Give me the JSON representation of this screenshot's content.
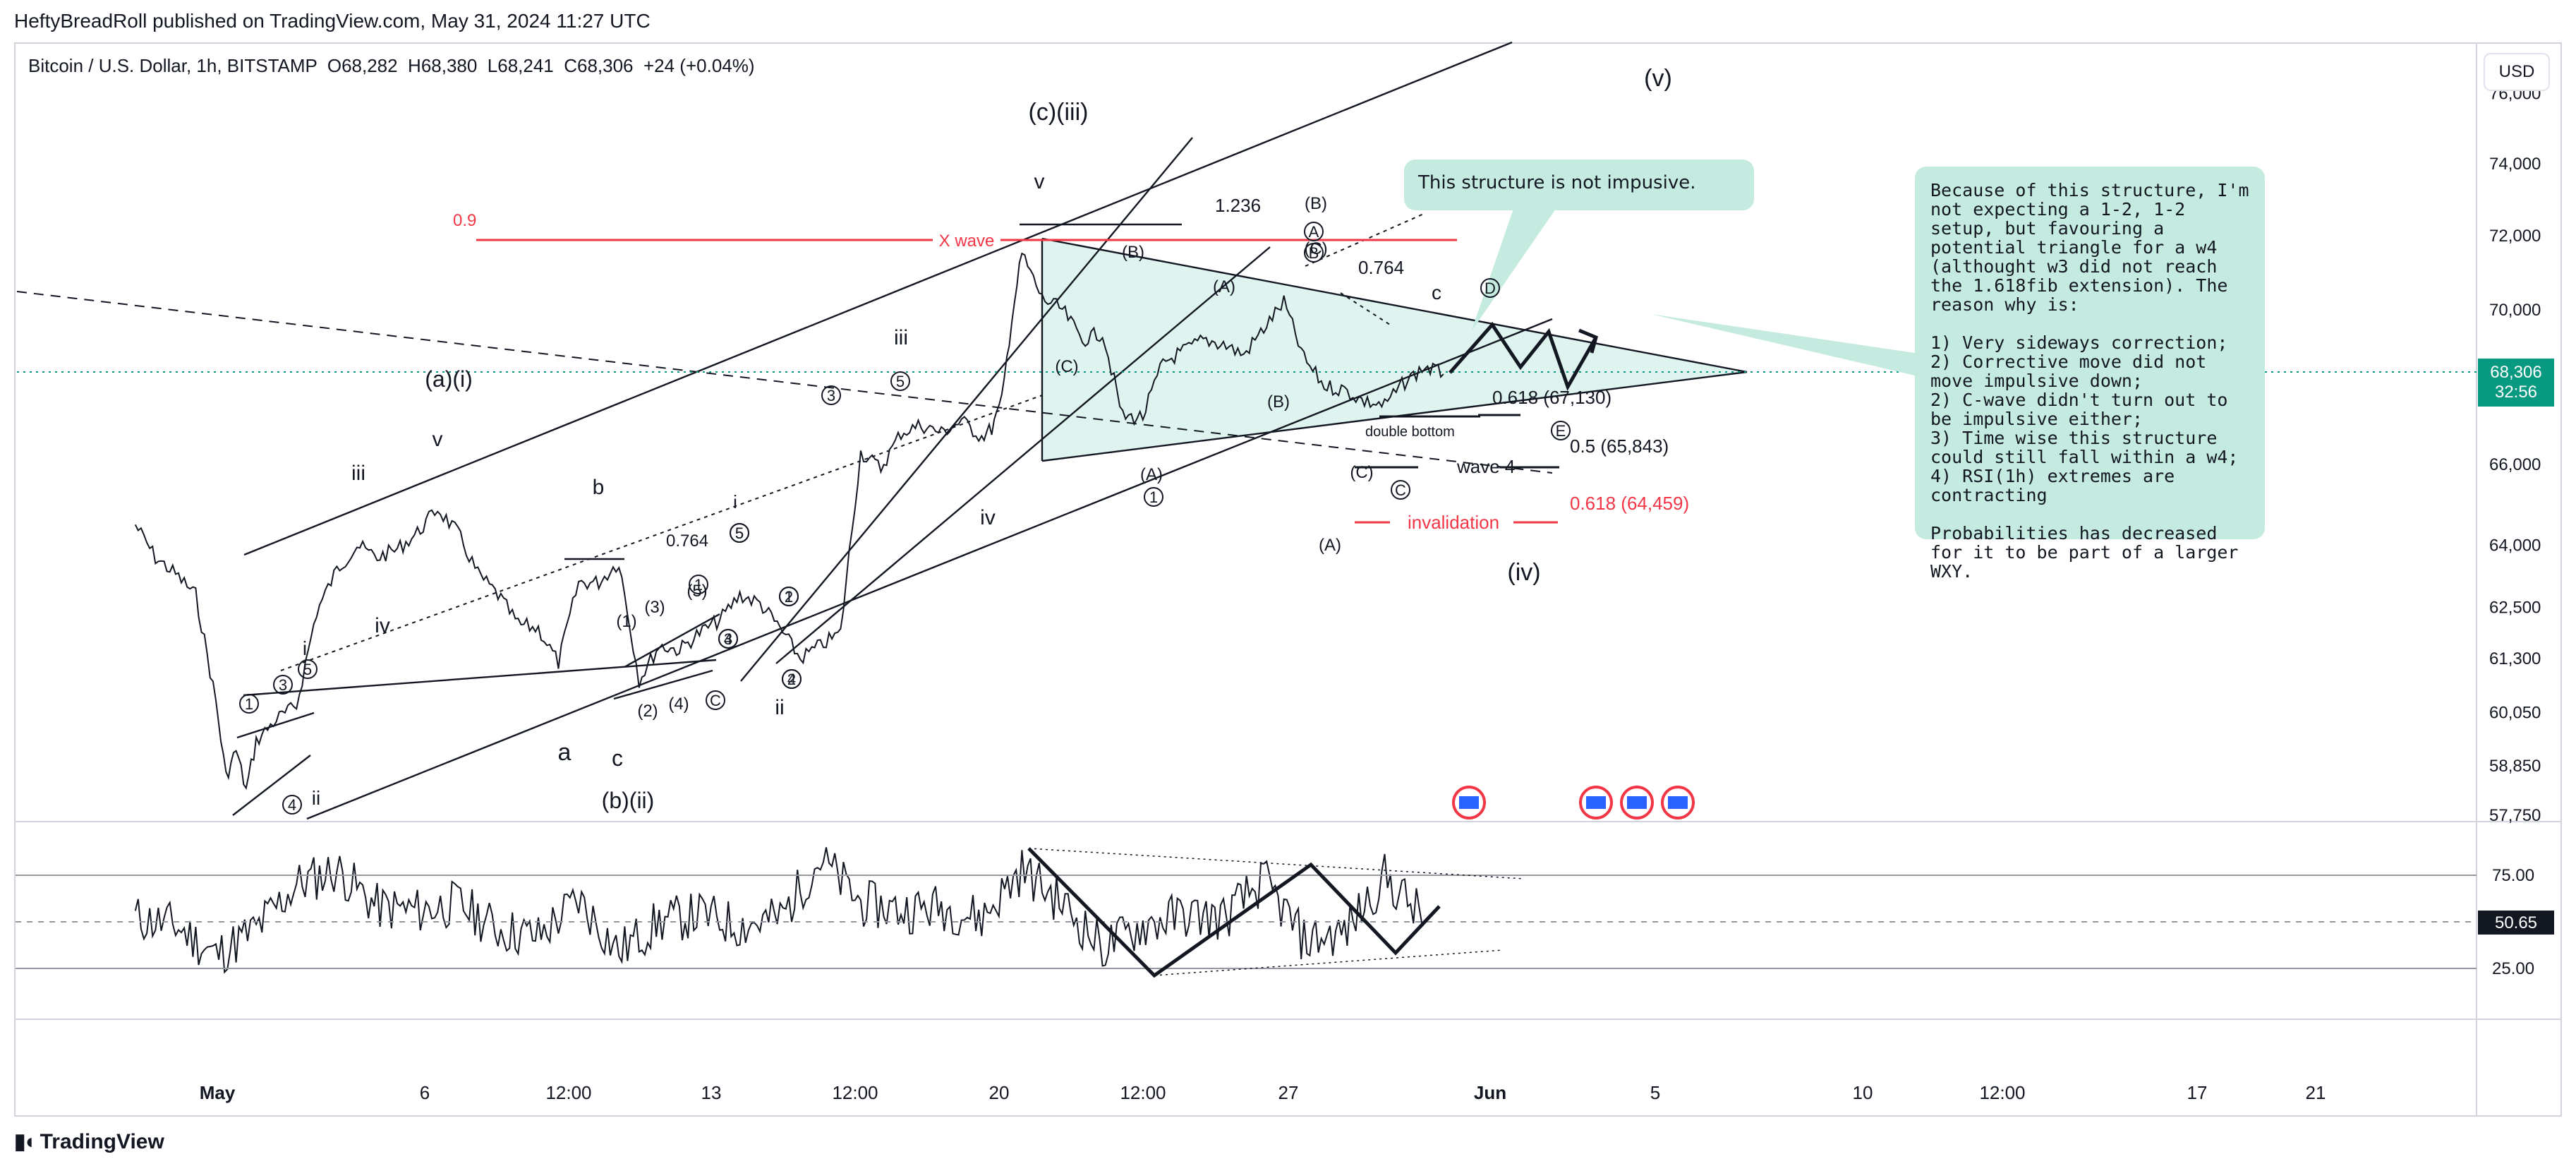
{
  "publisher": "HeftyBreadRoll published on TradingView.com, May 31, 2024 11:27 UTC",
  "symbol_line": "Bitcoin / U.S. Dollar, 1h, BITSTAMP  O68,282  H68,380  L68,241  C68,306  +24 (+0.04%)",
  "currency_button": "USD",
  "footer_brand": "TradingView",
  "current_price": {
    "value": "68,306",
    "countdown": "32:56",
    "color": "#089981"
  },
  "rsi_current": {
    "value": "50.65",
    "color": "#131722"
  },
  "notes": {
    "small": "This structure is not impusive.",
    "big": "Because of this structure, I'm not expecting a 1-2, 1-2 setup, but favouring a potential triangle for a w4 (althought w3 did not reach the 1.618fib extension). The reason why is:\n\n1) Very sideways correction;\n2) Corrective move did not move impulsive down;\n2) C-wave didn't turn out to be impulsive either;\n3) Time wise this structure could still fall within a w4;\n4) RSI(1h) extremes are contracting\n\nProbabilities has decreased for it to be part of a larger WXY.",
    "color": "#c5ebe1"
  },
  "chart_data": [
    {
      "type": "line",
      "title": "Bitcoin / U.S. Dollar, 1h, BITSTAMP",
      "series": [
        {
          "x": [
            "Apr 29 00:00",
            "Apr 29 12:00",
            "Apr 30 00:00",
            "Apr 30 12:00",
            "May 1 00:00",
            "May 1 06:00",
            "May 1 12:00",
            "May 1 18:00",
            "May 2 00:00",
            "May 2 12:00",
            "May 3 00:00",
            "May 3 12:00",
            "May 4 00:00",
            "May 4 12:00",
            "May 5 00:00",
            "May 5 12:00",
            "May 6 00:00",
            "May 6 12:00",
            "May 7 00:00",
            "May 7 12:00",
            "May 8 00:00",
            "May 8 12:00",
            "May 9 00:00",
            "May 9 12:00",
            "May 10 00:00",
            "May 10 12:00",
            "May 11 00:00",
            "May 11 12:00",
            "May 12 00:00",
            "May 12 12:00",
            "May 13 00:00",
            "May 13 12:00",
            "May 14 00:00",
            "May 14 12:00",
            "May 15 00:00",
            "May 15 12:00",
            "May 16 00:00",
            "May 16 12:00",
            "May 17 00:00",
            "May 17 12:00",
            "May 18 00:00",
            "May 18 12:00",
            "May 19 00:00",
            "May 19 12:00",
            "May 20 00:00",
            "May 20 06:00",
            "May 20 12:00",
            "May 20 18:00",
            "May 21 00:00",
            "May 21 12:00",
            "May 22 00:00",
            "May 22 12:00",
            "May 23 00:00",
            "May 23 12:00",
            "May 24 00:00",
            "May 24 12:00",
            "May 25 00:00",
            "May 25 12:00",
            "May 26 00:00",
            "May 26 12:00",
            "May 27 00:00",
            "May 27 12:00",
            "May 28 00:00",
            "May 28 12:00",
            "May 29 00:00",
            "May 29 12:00",
            "May 30 00:00",
            "May 30 12:00",
            "May 31 00:00",
            "May 31 11:00"
          ],
          "values": [
            64500,
            63700,
            63300,
            62800,
            60300,
            58600,
            59200,
            58300,
            59400,
            59900,
            60200,
            62400,
            63400,
            64000,
            63700,
            63900,
            64300,
            64900,
            64300,
            63300,
            62800,
            62100,
            62000,
            61200,
            63100,
            63100,
            63600,
            60800,
            61600,
            61500,
            61900,
            62200,
            62800,
            62600,
            62000,
            61300,
            61600,
            61900,
            66300,
            65900,
            66800,
            67000,
            66800,
            67100,
            66700,
            66900,
            67600,
            69800,
            71500,
            70300,
            70000,
            69200,
            69400,
            67200,
            67200,
            68600,
            68900,
            69200,
            69100,
            68800,
            69500,
            70200,
            68700,
            68000,
            67900,
            67600,
            67500,
            68100,
            68500,
            68306
          ]
        }
      ],
      "y_axis_ticks": [
        "76,000",
        "74,000",
        "72,000",
        "70,000",
        "68,000",
        "66,000",
        "64,000",
        "62,500",
        "61,300",
        "60,050",
        "58,850",
        "57,750"
      ],
      "scale": "log",
      "x_axis_ticks": [
        "May",
        "6",
        "12:00",
        "13",
        "12:00",
        "20",
        "12:00",
        "27",
        "Jun",
        "5",
        "10",
        "12:00",
        "17",
        "21"
      ],
      "annotations": {
        "wave_labels": [
          "(v)",
          "(c)(iii)",
          "v",
          "(a)(i)",
          "iii",
          "v",
          "iii",
          "iv",
          "b",
          "a",
          "c",
          "(b)(ii)",
          "i",
          "ii",
          "iv",
          "(iv)",
          "i",
          "ii",
          "iii",
          "iv",
          "v",
          "c"
        ],
        "fib_labels": [
          "0.9",
          "X wave",
          "1.236",
          "0.764",
          "0.764",
          "0.618 (67,130)",
          "0.5 (65,843)",
          "0.618 (64,459)",
          "invalidation",
          "wave 4",
          "double bottom"
        ],
        "circled": [
          "1",
          "3",
          "5",
          "4",
          "1",
          "5",
          "4",
          "1",
          "2",
          "3",
          "5",
          "1",
          "2",
          "3",
          "5",
          "4",
          "A",
          "B",
          "C",
          "D",
          "E",
          "C"
        ],
        "parenthesized": [
          "(1)",
          "(2)",
          "(3)",
          "(4)",
          "(5)",
          "(A)",
          "(B)",
          "(C)",
          "(A)",
          "(B)",
          "(C)",
          "(A)",
          "(B)",
          "(C)"
        ]
      }
    },
    {
      "type": "line",
      "title": "RSI(1h)",
      "y_axis_ticks": [
        "75.00",
        "25.00"
      ],
      "ylim": [
        0,
        100
      ],
      "series": [
        {
          "x": [
            "Apr 29",
            "Apr 30",
            "May 1",
            "May 2",
            "May 3",
            "May 4",
            "May 5",
            "May 6",
            "May 7",
            "May 8",
            "May 9",
            "May 10",
            "May 11",
            "May 12",
            "May 13",
            "May 14",
            "May 15",
            "May 16",
            "May 17",
            "May 18",
            "May 19",
            "May 20",
            "May 21",
            "May 22",
            "May 23",
            "May 24",
            "May 25",
            "May 26",
            "May 27",
            "May 28",
            "May 29",
            "May 30",
            "May 31"
          ],
          "values": [
            52,
            48,
            32,
            46,
            70,
            78,
            58,
            56,
            60,
            46,
            42,
            62,
            34,
            50,
            54,
            48,
            52,
            84,
            60,
            56,
            58,
            52,
            78,
            60,
            36,
            48,
            54,
            52,
            72,
            40,
            44,
            74,
            50.65
          ]
        }
      ]
    }
  ]
}
